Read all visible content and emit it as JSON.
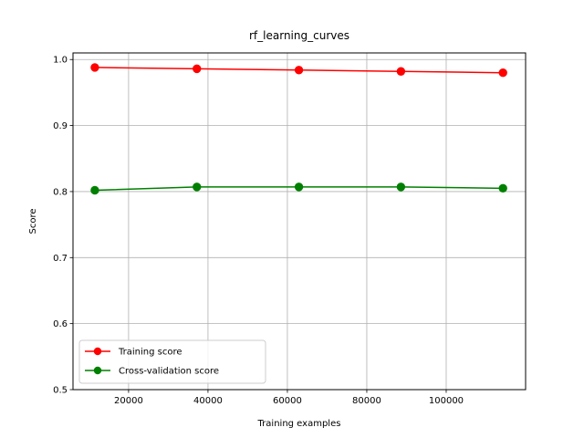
{
  "chart_data": {
    "type": "line",
    "title": "rf_learning_curves",
    "xlabel": "Training examples",
    "ylabel": "Score",
    "xlim": [
      6000,
      120000
    ],
    "ylim": [
      0.5,
      1.01
    ],
    "xticks": [
      20000,
      40000,
      60000,
      80000,
      100000
    ],
    "yticks": [
      0.5,
      0.6,
      0.7,
      0.8,
      0.9,
      1.0
    ],
    "xtick_labels": [
      "20000",
      "40000",
      "60000",
      "80000",
      "100000"
    ],
    "ytick_labels": [
      "0.5",
      "0.6",
      "0.7",
      "0.8",
      "0.9",
      "1.0"
    ],
    "grid": true,
    "legend_position": "lower-left",
    "x": [
      11500,
      37200,
      62900,
      88600,
      114300
    ],
    "series": [
      {
        "name": "Training score",
        "color": "#ff0000",
        "marker": "circle",
        "values": [
          0.988,
          0.986,
          0.984,
          0.982,
          0.98
        ]
      },
      {
        "name": "Cross-validation score",
        "color": "#008000",
        "marker": "circle",
        "values": [
          0.802,
          0.807,
          0.807,
          0.807,
          0.805
        ]
      }
    ]
  }
}
